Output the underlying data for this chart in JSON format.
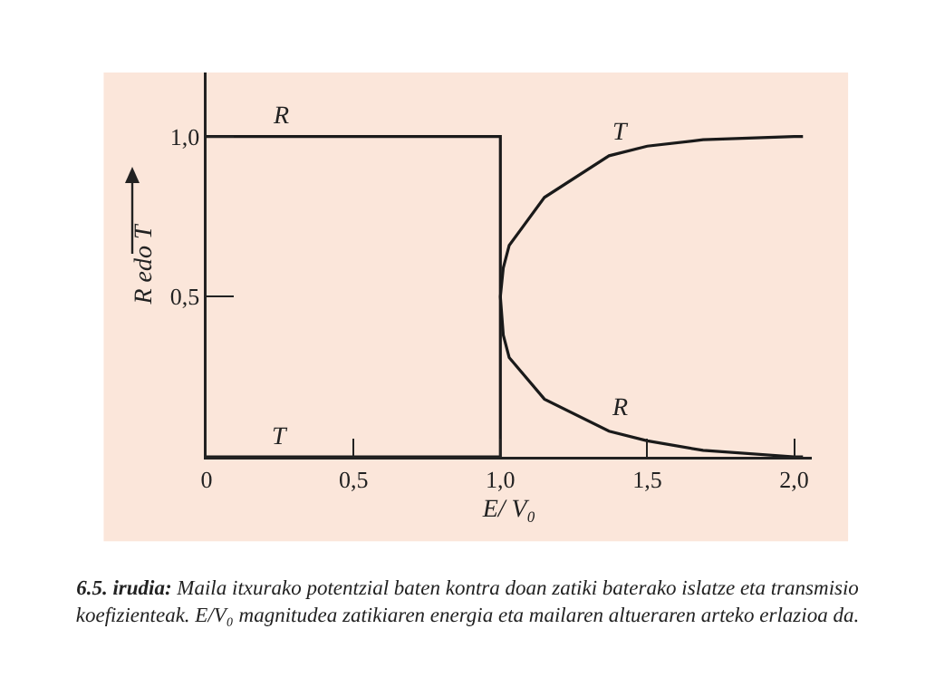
{
  "chart_data": {
    "type": "line",
    "ylabel": "R edo T",
    "xlabel": "E/ V₀",
    "xlim": [
      0,
      2.06
    ],
    "ylim": [
      0,
      1.2
    ],
    "xticks": [
      {
        "value": 0,
        "label": "0"
      },
      {
        "value": 0.5,
        "label": "0,5"
      },
      {
        "value": 1,
        "label": "1,0"
      },
      {
        "value": 1.5,
        "label": "1,5"
      },
      {
        "value": 2,
        "label": "2,0"
      }
    ],
    "yticks": [
      {
        "value": 0.5,
        "label": "0,5"
      },
      {
        "value": 1,
        "label": "1,0"
      }
    ],
    "grid": false,
    "legend": false,
    "marker": "none",
    "line_style": "solid",
    "series": [
      {
        "name": "R",
        "color": "#1a1a1a",
        "x": [
          0,
          1,
          1,
          1.01,
          1.03,
          1.15,
          1.37,
          1.5,
          1.69,
          2.0,
          2.03
        ],
        "values": [
          1,
          1,
          0.5,
          0.38,
          0.31,
          0.18,
          0.08,
          0.05,
          0.02,
          0.0,
          0.0
        ]
      },
      {
        "name": "T",
        "color": "#1a1a1a",
        "x": [
          0,
          1,
          1,
          1.01,
          1.03,
          1.15,
          1.37,
          1.5,
          1.69,
          2.0,
          2.03
        ],
        "values": [
          0,
          0,
          0.5,
          0.59,
          0.66,
          0.81,
          0.94,
          0.97,
          0.99,
          1.0,
          1.0
        ]
      }
    ],
    "annotations": [
      "6.5. irudia:",
      "Maila itxurako potentzial baten kontra doan zatiki baterako islatze eta transmisio koefizienteak. E/V₀ magnitudea zatikiaren energia eta mailaren altueraren arteko erlazioa da."
    ]
  }
}
